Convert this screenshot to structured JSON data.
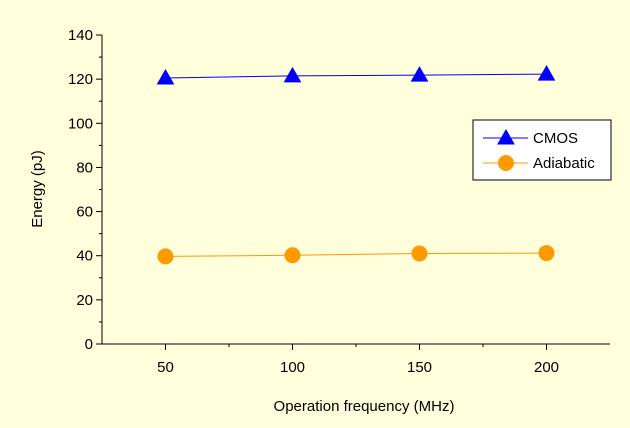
{
  "chart_data": {
    "type": "line",
    "title": "",
    "xlabel": "Operation frequency (MHz)",
    "ylabel": "Energy (pJ)",
    "x": [
      50,
      100,
      150,
      200
    ],
    "x_ticks": [
      "50",
      "100",
      "150",
      "200"
    ],
    "xlim": [
      25,
      225
    ],
    "ylim": [
      0,
      140
    ],
    "y_ticks": [
      "0",
      "20",
      "40",
      "60",
      "80",
      "100",
      "120",
      "140"
    ],
    "grid": false,
    "legend_position": "right",
    "series": [
      {
        "name": "CMOS",
        "values": [
          120.5,
          121.5,
          121.8,
          122.3
        ],
        "color": "#0000FF",
        "marker": "triangle"
      },
      {
        "name": "Adiabatic",
        "values": [
          39.7,
          40.2,
          41.0,
          41.2
        ],
        "color": "#FF9900",
        "marker": "circle"
      }
    ]
  }
}
